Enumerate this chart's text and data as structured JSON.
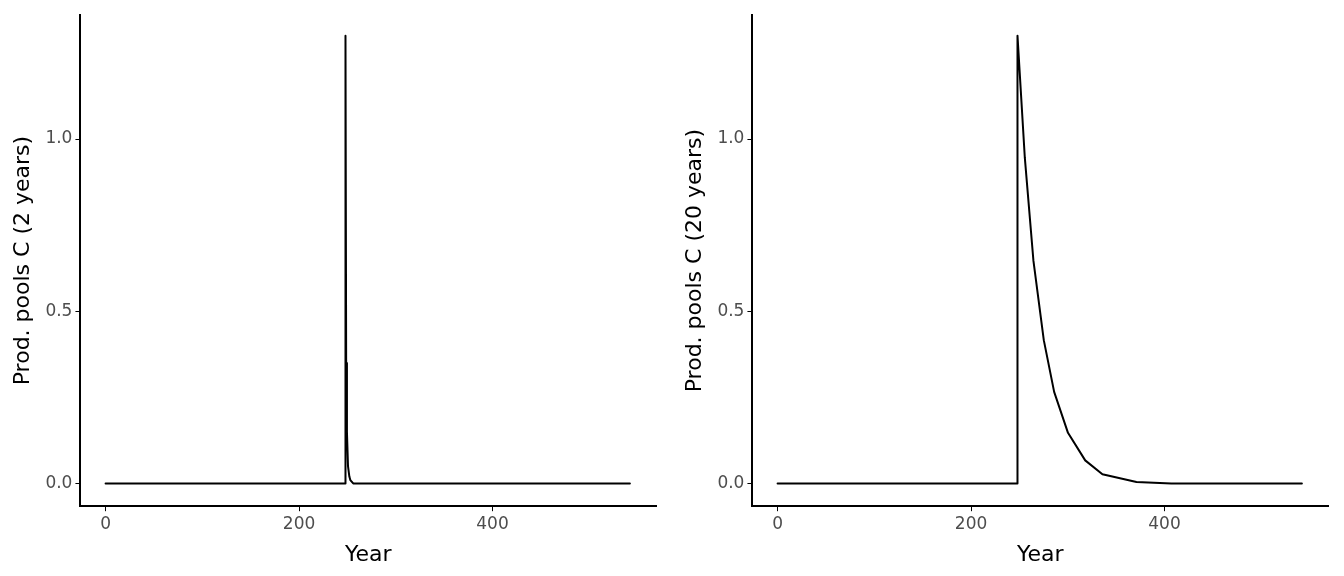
{
  "chart_data": [
    {
      "type": "line",
      "xlabel": "Year",
      "ylabel": "Prod. pools C (2 years)",
      "xlim": [
        -26,
        569
      ],
      "ylim": [
        -0.066,
        1.36
      ],
      "xticks": [
        0,
        200,
        400
      ],
      "yticks": [
        {
          "value": 0,
          "label": "0.0"
        },
        {
          "value": 0.5,
          "label": "0.5"
        },
        {
          "value": 1,
          "label": "1.0"
        }
      ],
      "grid": false,
      "legend": false,
      "marker": "none",
      "line_style": "solid",
      "series": [
        {
          "color": "#000000",
          "x": [
            0,
            247.5,
            248,
            248.7,
            249.5,
            250.6,
            252,
            253,
            256,
            542
          ],
          "values": [
            0,
            0,
            1.3,
            0.35,
            0.15,
            0.05,
            0.02,
            0.01,
            0,
            0
          ]
        }
      ]
    },
    {
      "type": "line",
      "xlabel": "Year",
      "ylabel": "Prod. pools C (20 years)",
      "xlim": [
        -26,
        569
      ],
      "ylim": [
        -0.066,
        1.36
      ],
      "xticks": [
        0,
        200,
        400
      ],
      "yticks": [
        {
          "value": 0,
          "label": "0.0"
        },
        {
          "value": 0.5,
          "label": "0.5"
        },
        {
          "value": 1,
          "label": "1.0"
        }
      ],
      "grid": false,
      "legend": false,
      "marker": "none",
      "line_style": "solid",
      "series": [
        {
          "color": "#000000",
          "x": [
            0,
            247.5,
            248,
            255.6,
            264.5,
            275.2,
            285.9,
            300.2,
            318,
            335.8,
            371,
            407,
            542
          ],
          "values": [
            0,
            0,
            1.3,
            0.945,
            0.646,
            0.416,
            0.266,
            0.147,
            0.067,
            0.027,
            0.004,
            0,
            0
          ]
        }
      ]
    }
  ]
}
